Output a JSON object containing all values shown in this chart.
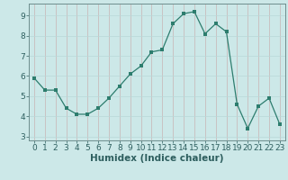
{
  "x": [
    0,
    1,
    2,
    3,
    4,
    5,
    6,
    7,
    8,
    9,
    10,
    11,
    12,
    13,
    14,
    15,
    16,
    17,
    18,
    19,
    20,
    21,
    22,
    23
  ],
  "y": [
    5.9,
    5.3,
    5.3,
    4.4,
    4.1,
    4.1,
    4.4,
    4.9,
    5.5,
    6.1,
    6.5,
    7.2,
    7.3,
    8.6,
    9.1,
    9.2,
    8.1,
    8.6,
    8.2,
    4.6,
    3.4,
    4.5,
    4.9,
    3.6
  ],
  "xlabel": "Humidex (Indice chaleur)",
  "xlim": [
    -0.5,
    23.5
  ],
  "ylim": [
    2.8,
    9.6
  ],
  "yticks": [
    3,
    4,
    5,
    6,
    7,
    8,
    9
  ],
  "xticks": [
    0,
    1,
    2,
    3,
    4,
    5,
    6,
    7,
    8,
    9,
    10,
    11,
    12,
    13,
    14,
    15,
    16,
    17,
    18,
    19,
    20,
    21,
    22,
    23
  ],
  "line_color": "#2d7d6e",
  "marker_size": 2.5,
  "bg_color": "#cce8e8",
  "grid_color_major": "#c8b4b4",
  "grid_color_minor": "#b8d8d8",
  "spine_color": "#6e8e8e",
  "text_color": "#2d5e5e",
  "font_size": 6.5,
  "xlabel_fontsize": 7.5
}
